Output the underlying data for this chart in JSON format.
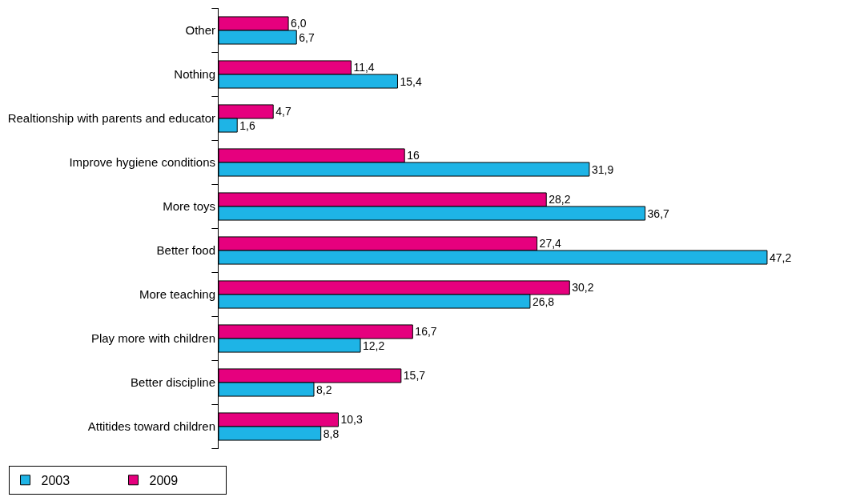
{
  "chart_data": {
    "type": "bar",
    "orientation": "horizontal",
    "legend": "bottom left",
    "categories": [
      "Other",
      "Nothing",
      "Realtionship with parents and educator",
      "Improve hygiene conditions",
      "More toys",
      "Better food",
      "More teaching",
      "Play more with children",
      "Better discipline",
      "Attitides toward children"
    ],
    "series": [
      {
        "name": "2003",
        "color": "#1eb4e6",
        "values": [
          6.7,
          15.4,
          1.6,
          31.9,
          36.7,
          47.2,
          26.8,
          12.2,
          8.2,
          8.8
        ],
        "value_labels": [
          "6,7",
          "15,4",
          "1,6",
          "31,9",
          "36,7",
          "47,2",
          "26,8",
          "12,2",
          "8,2",
          "8,8"
        ]
      },
      {
        "name": "2009",
        "color": "#e6007e",
        "values": [
          6.0,
          11.4,
          4.7,
          16,
          28.2,
          27.4,
          30.2,
          16.7,
          15.7,
          10.3
        ],
        "value_labels": [
          "6,0",
          "11,4",
          "4,7",
          "16",
          "28,2",
          "27,4",
          "30,2",
          "16,7",
          "15,7",
          "10,3"
        ]
      }
    ]
  }
}
